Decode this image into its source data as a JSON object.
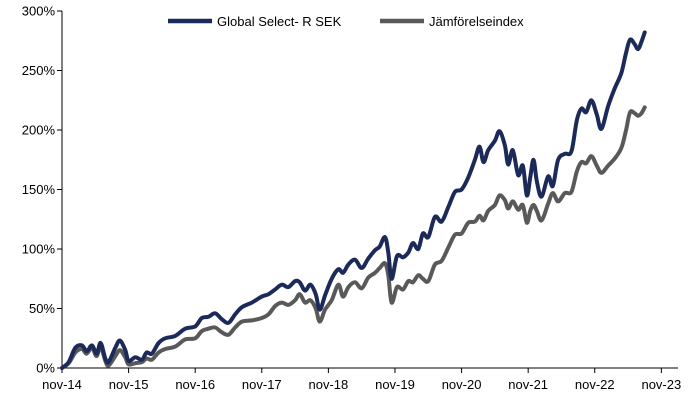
{
  "chart_data": {
    "type": "line",
    "title": "",
    "xlabel": "",
    "ylabel": "",
    "ylim": [
      0,
      300
    ],
    "y_ticks": [
      0,
      50,
      100,
      150,
      200,
      250,
      300
    ],
    "y_tick_labels": [
      "0%",
      "50%",
      "100%",
      "150%",
      "200%",
      "250%",
      "300%"
    ],
    "x_tick_labels": [
      "nov-14",
      "nov-15",
      "nov-16",
      "nov-17",
      "nov-18",
      "nov-19",
      "nov-20",
      "nov-21",
      "nov-22",
      "nov-23"
    ],
    "x_range": [
      2014.85,
      2024.1
    ],
    "x_ticks": [
      2014.85,
      2015.85,
      2016.85,
      2017.85,
      2018.85,
      2019.85,
      2020.85,
      2021.85,
      2022.85,
      2023.85
    ],
    "grid": false,
    "legend_position": "top-center",
    "series": [
      {
        "name": "Global Select- R SEK",
        "color": "#1b2a59",
        "points": [
          [
            2014.85,
            0
          ],
          [
            2014.95,
            5
          ],
          [
            2015.05,
            17
          ],
          [
            2015.15,
            19
          ],
          [
            2015.22,
            14
          ],
          [
            2015.3,
            19
          ],
          [
            2015.37,
            12
          ],
          [
            2015.43,
            21
          ],
          [
            2015.5,
            8
          ],
          [
            2015.55,
            5
          ],
          [
            2015.65,
            17
          ],
          [
            2015.72,
            23
          ],
          [
            2015.8,
            15
          ],
          [
            2015.85,
            6
          ],
          [
            2015.95,
            9
          ],
          [
            2016.05,
            7
          ],
          [
            2016.12,
            13
          ],
          [
            2016.2,
            12
          ],
          [
            2016.3,
            21
          ],
          [
            2016.4,
            25
          ],
          [
            2016.55,
            27
          ],
          [
            2016.7,
            33
          ],
          [
            2016.85,
            35
          ],
          [
            2016.95,
            42
          ],
          [
            2017.05,
            43
          ],
          [
            2017.15,
            46
          ],
          [
            2017.25,
            41
          ],
          [
            2017.35,
            38
          ],
          [
            2017.45,
            45
          ],
          [
            2017.55,
            51
          ],
          [
            2017.7,
            55
          ],
          [
            2017.85,
            60
          ],
          [
            2017.95,
            62
          ],
          [
            2018.05,
            66
          ],
          [
            2018.15,
            70
          ],
          [
            2018.25,
            68
          ],
          [
            2018.35,
            73
          ],
          [
            2018.42,
            72
          ],
          [
            2018.5,
            65
          ],
          [
            2018.58,
            70
          ],
          [
            2018.66,
            62
          ],
          [
            2018.72,
            49
          ],
          [
            2018.8,
            61
          ],
          [
            2018.9,
            75
          ],
          [
            2019.0,
            83
          ],
          [
            2019.07,
            80
          ],
          [
            2019.15,
            87
          ],
          [
            2019.25,
            91
          ],
          [
            2019.35,
            84
          ],
          [
            2019.45,
            92
          ],
          [
            2019.55,
            99
          ],
          [
            2019.62,
            102
          ],
          [
            2019.7,
            110
          ],
          [
            2019.75,
            97
          ],
          [
            2019.8,
            75
          ],
          [
            2019.88,
            94
          ],
          [
            2019.97,
            93
          ],
          [
            2020.05,
            97
          ],
          [
            2020.12,
            105
          ],
          [
            2020.2,
            100
          ],
          [
            2020.27,
            113
          ],
          [
            2020.35,
            110
          ],
          [
            2020.45,
            127
          ],
          [
            2020.55,
            123
          ],
          [
            2020.65,
            135
          ],
          [
            2020.75,
            148
          ],
          [
            2020.85,
            150
          ],
          [
            2020.95,
            160
          ],
          [
            2021.05,
            175
          ],
          [
            2021.12,
            186
          ],
          [
            2021.18,
            173
          ],
          [
            2021.25,
            183
          ],
          [
            2021.35,
            191
          ],
          [
            2021.42,
            199
          ],
          [
            2021.5,
            187
          ],
          [
            2021.55,
            171
          ],
          [
            2021.62,
            183
          ],
          [
            2021.7,
            162
          ],
          [
            2021.77,
            170
          ],
          [
            2021.83,
            145
          ],
          [
            2021.88,
            160
          ],
          [
            2021.93,
            175
          ],
          [
            2021.98,
            157
          ],
          [
            2022.05,
            144
          ],
          [
            2022.15,
            161
          ],
          [
            2022.22,
            153
          ],
          [
            2022.3,
            175
          ],
          [
            2022.4,
            180
          ],
          [
            2022.5,
            182
          ],
          [
            2022.58,
            208
          ],
          [
            2022.65,
            218
          ],
          [
            2022.72,
            215
          ],
          [
            2022.8,
            225
          ],
          [
            2022.88,
            213
          ],
          [
            2022.95,
            201
          ],
          [
            2023.05,
            220
          ],
          [
            2023.15,
            235
          ],
          [
            2023.25,
            248
          ],
          [
            2023.32,
            265
          ],
          [
            2023.38,
            276
          ],
          [
            2023.45,
            272
          ],
          [
            2023.5,
            268
          ],
          [
            2023.55,
            274
          ],
          [
            2023.6,
            282
          ]
        ]
      },
      {
        "name": "Jämförelseindex",
        "color": "#595959",
        "points": [
          [
            2014.85,
            0
          ],
          [
            2014.95,
            4
          ],
          [
            2015.05,
            13
          ],
          [
            2015.15,
            16
          ],
          [
            2015.22,
            12
          ],
          [
            2015.3,
            17
          ],
          [
            2015.37,
            10
          ],
          [
            2015.43,
            18
          ],
          [
            2015.5,
            6
          ],
          [
            2015.55,
            2
          ],
          [
            2015.65,
            10
          ],
          [
            2015.72,
            15
          ],
          [
            2015.8,
            9
          ],
          [
            2015.85,
            3
          ],
          [
            2015.95,
            4
          ],
          [
            2016.05,
            5
          ],
          [
            2016.12,
            8
          ],
          [
            2016.2,
            7
          ],
          [
            2016.3,
            13
          ],
          [
            2016.4,
            16
          ],
          [
            2016.55,
            18
          ],
          [
            2016.7,
            24
          ],
          [
            2016.85,
            25
          ],
          [
            2016.95,
            31
          ],
          [
            2017.05,
            33
          ],
          [
            2017.15,
            34
          ],
          [
            2017.25,
            30
          ],
          [
            2017.35,
            28
          ],
          [
            2017.45,
            34
          ],
          [
            2017.55,
            39
          ],
          [
            2017.7,
            40
          ],
          [
            2017.85,
            42
          ],
          [
            2017.95,
            45
          ],
          [
            2018.05,
            52
          ],
          [
            2018.15,
            55
          ],
          [
            2018.25,
            53
          ],
          [
            2018.35,
            57
          ],
          [
            2018.42,
            62
          ],
          [
            2018.5,
            55
          ],
          [
            2018.58,
            57
          ],
          [
            2018.66,
            50
          ],
          [
            2018.72,
            39
          ],
          [
            2018.8,
            49
          ],
          [
            2018.9,
            57
          ],
          [
            2019.0,
            70
          ],
          [
            2019.07,
            60
          ],
          [
            2019.15,
            68
          ],
          [
            2019.25,
            72
          ],
          [
            2019.35,
            67
          ],
          [
            2019.45,
            76
          ],
          [
            2019.55,
            80
          ],
          [
            2019.62,
            84
          ],
          [
            2019.7,
            88
          ],
          [
            2019.75,
            78
          ],
          [
            2019.8,
            55
          ],
          [
            2019.88,
            68
          ],
          [
            2019.97,
            66
          ],
          [
            2020.05,
            73
          ],
          [
            2020.12,
            72
          ],
          [
            2020.2,
            78
          ],
          [
            2020.27,
            75
          ],
          [
            2020.35,
            73
          ],
          [
            2020.45,
            87
          ],
          [
            2020.55,
            90
          ],
          [
            2020.65,
            101
          ],
          [
            2020.75,
            112
          ],
          [
            2020.85,
            113
          ],
          [
            2020.95,
            122
          ],
          [
            2021.05,
            123
          ],
          [
            2021.12,
            128
          ],
          [
            2021.18,
            124
          ],
          [
            2021.25,
            132
          ],
          [
            2021.35,
            137
          ],
          [
            2021.42,
            145
          ],
          [
            2021.5,
            141
          ],
          [
            2021.55,
            134
          ],
          [
            2021.62,
            140
          ],
          [
            2021.7,
            133
          ],
          [
            2021.77,
            137
          ],
          [
            2021.83,
            122
          ],
          [
            2021.88,
            132
          ],
          [
            2021.93,
            137
          ],
          [
            2021.98,
            132
          ],
          [
            2022.05,
            124
          ],
          [
            2022.15,
            138
          ],
          [
            2022.22,
            147
          ],
          [
            2022.3,
            140
          ],
          [
            2022.4,
            147
          ],
          [
            2022.5,
            148
          ],
          [
            2022.58,
            165
          ],
          [
            2022.65,
            173
          ],
          [
            2022.72,
            172
          ],
          [
            2022.8,
            178
          ],
          [
            2022.88,
            170
          ],
          [
            2022.95,
            164
          ],
          [
            2023.05,
            170
          ],
          [
            2023.15,
            176
          ],
          [
            2023.25,
            185
          ],
          [
            2023.32,
            200
          ],
          [
            2023.38,
            215
          ],
          [
            2023.45,
            214
          ],
          [
            2023.5,
            212
          ],
          [
            2023.55,
            214
          ],
          [
            2023.6,
            219
          ]
        ]
      }
    ]
  }
}
